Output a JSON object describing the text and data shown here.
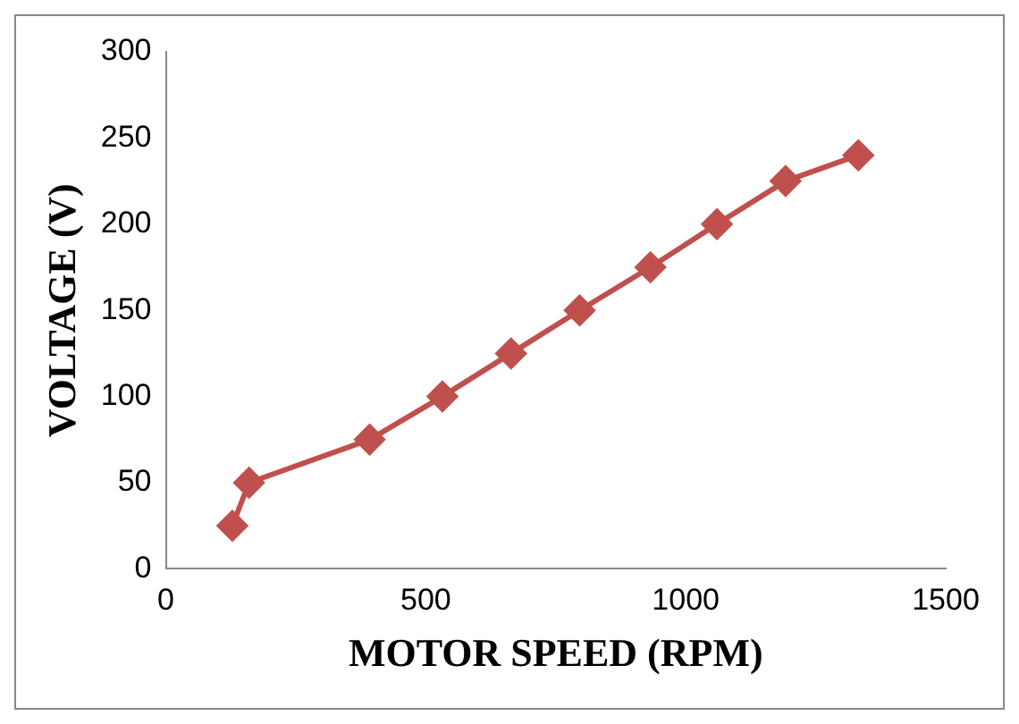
{
  "chart_data": {
    "type": "line",
    "xlabel": "MOTOR SPEED (RPM)",
    "ylabel": "VOLTAGE (V)",
    "x": [
      128,
      160,
      392,
      532,
      664,
      796,
      932,
      1060,
      1192,
      1332
    ],
    "series": [
      {
        "color": "#c0504d",
        "values": [
          25,
          50,
          75,
          100,
          125,
          150,
          175,
          200,
          225,
          240
        ]
      }
    ],
    "xlim": [
      0,
      1500
    ],
    "xticks": [
      0,
      500,
      1000,
      1500
    ],
    "ylim": [
      0,
      300
    ],
    "yticks": [
      0,
      50,
      100,
      150,
      200,
      250,
      300
    ],
    "grid": false,
    "legend": false,
    "marker": "diamond",
    "line_style": "solid"
  }
}
